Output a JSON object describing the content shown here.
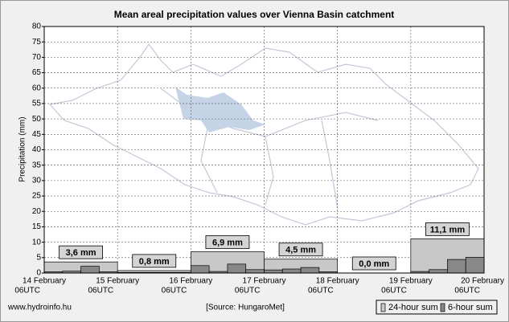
{
  "chart_data": {
    "type": "bar",
    "title": "Mean areal precipitation values over Vienna Basin catchment",
    "ylabel": "Precipitation (mm)",
    "ylim": [
      0,
      80
    ],
    "yticks": [
      0,
      5,
      10,
      15,
      20,
      25,
      30,
      35,
      40,
      45,
      50,
      55,
      60,
      65,
      70,
      75,
      80
    ],
    "grid": true,
    "x_ticks": [
      {
        "date": "14 February",
        "time": "06UTC"
      },
      {
        "date": "15 February",
        "time": "06UTC"
      },
      {
        "date": "16 February",
        "time": "06UTC"
      },
      {
        "date": "17 February",
        "time": "06UTC"
      },
      {
        "date": "18 February",
        "time": "06UTC"
      },
      {
        "date": "19 February",
        "time": "06UTC"
      },
      {
        "date": "20 February",
        "time": "06UTC"
      }
    ],
    "series": [
      {
        "name": "24-hour sum",
        "color": "#c8c8c8",
        "values": [
          3.6,
          0.8,
          6.9,
          4.5,
          0.0,
          11.1
        ],
        "value_labels": [
          "3,6 mm",
          "0,8 mm",
          "6,9 mm",
          "4,5 mm",
          "0,0 mm",
          "11,1 mm"
        ]
      },
      {
        "name": "6-hour sum",
        "color": "#888888",
        "values": [
          0.4,
          0.6,
          2.2,
          0.4,
          0.2,
          0.2,
          0.2,
          0.2,
          2.4,
          0.5,
          2.9,
          1.1,
          1.0,
          1.3,
          1.8,
          0.4,
          0,
          0,
          0,
          0,
          0.5,
          1.1,
          4.4,
          5.1
        ]
      }
    ],
    "website": "www.hydroinfo.hu",
    "source": "[Source: HungaroMet]"
  }
}
